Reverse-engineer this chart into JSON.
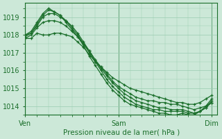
{
  "xlabel": "Pression niveau de la mer( hPa )",
  "xtick_labels": [
    "Ven",
    "Sam",
    "Dim"
  ],
  "xtick_positions": [
    0,
    16,
    32
  ],
  "ylim": [
    1013.5,
    1019.8
  ],
  "yticks": [
    1014,
    1015,
    1016,
    1017,
    1018,
    1019
  ],
  "xlim": [
    0,
    33
  ],
  "background_color": "#cce8d8",
  "grid_color": "#99ccb0",
  "line_color": "#1a6e2a",
  "series": [
    [
      1017.8,
      1017.8,
      1018.1,
      1018.0,
      1018.0,
      1018.1,
      1018.1,
      1018.0,
      1017.9,
      1017.6,
      1017.3,
      1016.9,
      1016.5,
      1016.2,
      1015.9,
      1015.6,
      1015.4,
      1015.2,
      1015.0,
      1014.9,
      1014.8,
      1014.7,
      1014.6,
      1014.5,
      1014.4,
      1014.3,
      1014.2,
      1014.2,
      1014.1,
      1014.1,
      1014.2,
      1014.4,
      1014.6
    ],
    [
      1017.8,
      1018.0,
      1018.4,
      1018.7,
      1018.8,
      1018.8,
      1018.7,
      1018.5,
      1018.2,
      1017.9,
      1017.5,
      1017.1,
      1016.6,
      1016.2,
      1015.8,
      1015.4,
      1015.1,
      1014.9,
      1014.7,
      1014.5,
      1014.4,
      1014.3,
      1014.3,
      1014.2,
      1014.2,
      1014.1,
      1014.1,
      1014.0,
      1013.9,
      1013.8,
      1013.9,
      1014.0,
      1014.2
    ],
    [
      1017.9,
      1018.1,
      1018.5,
      1019.0,
      1019.2,
      1019.2,
      1019.0,
      1018.8,
      1018.5,
      1018.1,
      1017.6,
      1017.1,
      1016.6,
      1016.1,
      1015.7,
      1015.3,
      1015.0,
      1014.7,
      1014.5,
      1014.3,
      1014.2,
      1014.1,
      1014.0,
      1013.9,
      1013.9,
      1013.8,
      1013.8,
      1013.8,
      1013.7,
      1013.6,
      1013.7,
      1013.9,
      1014.2
    ],
    [
      1018.0,
      1018.1,
      1018.6,
      1019.1,
      1019.4,
      1019.3,
      1019.1,
      1018.8,
      1018.4,
      1018.0,
      1017.5,
      1017.0,
      1016.5,
      1016.0,
      1015.5,
      1015.1,
      1014.8,
      1014.5,
      1014.3,
      1014.1,
      1014.0,
      1013.9,
      1013.8,
      1013.8,
      1013.7,
      1013.7,
      1013.7,
      1013.7,
      1013.6,
      1013.6,
      1013.7,
      1013.9,
      1014.3
    ],
    [
      1018.0,
      1018.2,
      1018.7,
      1019.2,
      1019.5,
      1019.3,
      1019.1,
      1018.7,
      1018.3,
      1017.9,
      1017.4,
      1016.8,
      1016.3,
      1015.8,
      1015.3,
      1014.9,
      1014.6,
      1014.3,
      1014.1,
      1014.0,
      1013.9,
      1013.8,
      1013.7,
      1013.6,
      1013.6,
      1013.5,
      1013.5,
      1013.6,
      1013.5,
      1013.5,
      1013.7,
      1014.0,
      1014.4
    ]
  ]
}
